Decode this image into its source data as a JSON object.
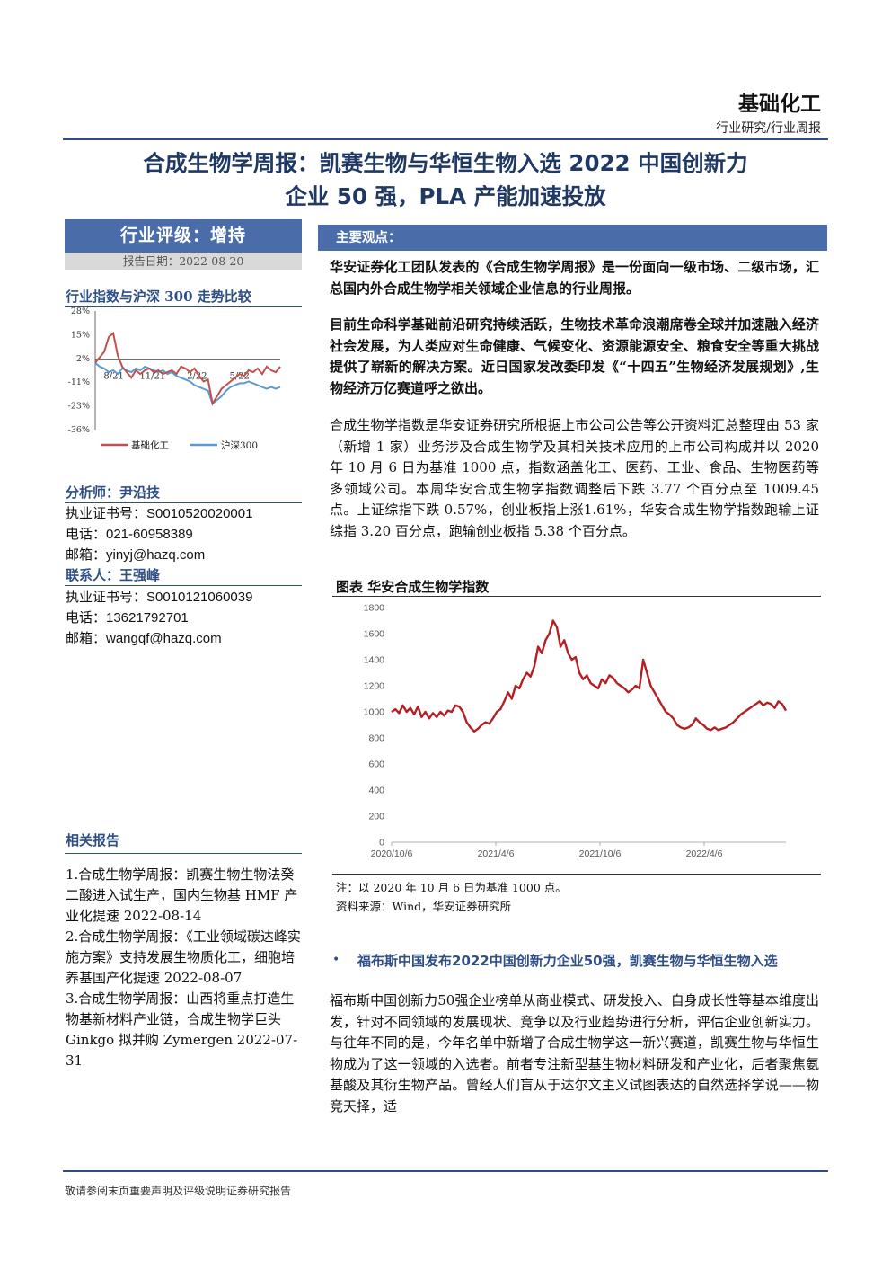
{
  "header": {
    "sector": "基础化工",
    "report_type": "行业研究/行业周报"
  },
  "title": {
    "line1": "合成生物学周报：凯赛生物与华恒生物入选 2022 中国创新力",
    "line2": "企业 50 强，PLA 产能加速投放"
  },
  "sidebar": {
    "rating": "行业评级：增持",
    "report_date": "报告日期：2022-08-20",
    "chart_title": "行业指数与沪深 300 走势比较",
    "analyst_heading": "分析师：尹沿技",
    "analyst_cert": "执业证书号：S0010520020001",
    "analyst_phone": "电话：021-60958389",
    "analyst_email": "邮箱：yinyj@hazq.com",
    "contact_heading": "联系人：王强峰",
    "contact_cert": "执业证书号：S0010121060039",
    "contact_phone": "电话：13621792701",
    "contact_email": "邮箱：wangqf@hazq.com",
    "related_heading": "相关报告",
    "related": [
      "1.合成生物学周报：凯赛生物生物法癸二酸进入试生产，国内生物基 HMF 产业化提速 2022-08-14",
      "2.合成生物学周报：《工业领域碳达峰实施方案》支持发展生物质化工，细胞培养基国产化提速 2022-08-07",
      "3.合成生物学周报：山西将重点打造生物基新材料产业链，合成生物学巨头 Ginkgo 拟并购 Zymergen 2022-07-31"
    ]
  },
  "main": {
    "section_label": "主要观点：",
    "para1": "华安证券化工团队发表的《合成生物学周报》是一份面向一级市场、二级市场，汇总国内外合成生物学相关领域企业信息的行业周报。",
    "para2": "目前生命科学基础前沿研究持续活跃，生物技术革命浪潮席卷全球并加速融入经济社会发展，为人类应对生命健康、气候变化、资源能源安全、粮食安全等重大挑战提供了崭新的解决方案。近日国家发改委印发《“十四五”生物经济发展规划》,生物经济万亿赛道呼之欲出。",
    "para3": "合成生物学指数是华安证券研究所根据上市公司公告等公开资料汇总整理由 53 家（新增 1 家）业务涉及合成生物学及其相关技术应用的上市公司构成并以 2020 年 10 月 6 日为基准 1000 点，指数涵盖化工、医药、工业、食品、生物医药等多领域公司。本周华安合成生物学指数调整后下跌 3.77 个百分点至 1009.45 点。上证综指下跌 0.57%，创业板指上涨1.61%，华安合成生物学指数跑输上证综指 3.20 百分点，跑输创业板指 5.38 个百分点。",
    "fig_title": "图表 华安合成生物学指数",
    "fig_note": "注：以 2020 年 10 月 6 日为基准 1000 点。",
    "fig_source": "资料来源：Wind，华安证券研究所",
    "bullet_head": "福布斯中国发布2022中国创新力企业50强，凯赛生物与华恒生物入选",
    "para4": "福布斯中国创新力50强企业榜单从商业模式、研发投入、自身成长性等基本维度出发，针对不同领域的发展现状、竞争以及行业趋势进行分析，评估企业创新实力。与往年不同的是，今年名单中新增了合成生物学这一新兴赛道，凯赛生物与华恒生物成为了这一领域的入选者。前者专注新型基生物材料研发和产业化，后者聚焦氨基酸及其衍生物产品。曾经人们盲从于达尔文主义试图表达的自然选择学说——物竞天择，适"
  },
  "footer": {
    "disclaimer": "敬请参阅末页重要声明及评级说明证券研究报告"
  },
  "chart_data": [
    {
      "type": "line",
      "title": "行业指数与沪深 300 走势比较",
      "x_tick_labels": [
        "8/21",
        "11/21",
        "2/22",
        "5/22"
      ],
      "y_tick_labels": [
        "28%",
        "15%",
        "2%",
        "-11%",
        "-23%",
        "-36%"
      ],
      "ylim": [
        -36,
        28
      ],
      "legend_position": "bottom",
      "colors": {
        "基础化工": "#c0504d",
        "沪深300": "#5b9bd5"
      },
      "series": [
        {
          "name": "基础化工",
          "values": [
            0,
            3,
            6,
            14,
            16,
            4,
            -2,
            -5,
            -8,
            -4,
            -6,
            -4,
            -3,
            -5,
            -4,
            -6,
            -5,
            -4,
            -6,
            -2,
            -3,
            -5,
            -3,
            -7,
            -10,
            -9,
            -22,
            -18,
            -14,
            -12,
            -10,
            -8,
            -6,
            -7,
            -4,
            -5,
            -3,
            -6,
            -2,
            -4,
            -5,
            -2
          ]
        },
        {
          "name": "沪深300",
          "values": [
            0,
            -2,
            -3,
            -5,
            -4,
            -6,
            -3,
            -4,
            -5,
            -3,
            -4,
            -2,
            -3,
            -4,
            -5,
            -4,
            -6,
            -5,
            -7,
            -8,
            -9,
            -10,
            -12,
            -13,
            -14,
            -15,
            -22,
            -20,
            -18,
            -15,
            -13,
            -12,
            -11,
            -11,
            -10,
            -11,
            -12,
            -13,
            -14,
            -13,
            -14,
            -13
          ]
        }
      ]
    },
    {
      "type": "line",
      "title": "图表 华安合成生物学指数",
      "x_tick_labels": [
        "2020/10/6",
        "2021/4/6",
        "2021/10/6",
        "2022/4/6"
      ],
      "y_tick_labels": [
        "0",
        "200",
        "400",
        "600",
        "800",
        "1000",
        "1200",
        "1400",
        "1600",
        "1800"
      ],
      "ylim": [
        0,
        1800
      ],
      "colors": {
        "line": "#b41f24"
      },
      "series": [
        {
          "name": "",
          "values": [
            1000,
            1020,
            990,
            1050,
            1000,
            1030,
            980,
            1040,
            960,
            1000,
            950,
            990,
            960,
            1000,
            970,
            1010,
            1000,
            1050,
            1040,
            1000,
            920,
            880,
            850,
            870,
            900,
            920,
            910,
            950,
            1000,
            1020,
            1080,
            1150,
            1100,
            1200,
            1180,
            1250,
            1300,
            1270,
            1350,
            1500,
            1450,
            1550,
            1600,
            1700,
            1650,
            1500,
            1550,
            1450,
            1400,
            1420,
            1300,
            1250,
            1280,
            1220,
            1200,
            1180,
            1250,
            1220,
            1280,
            1260,
            1220,
            1200,
            1180,
            1150,
            1170,
            1200,
            1180,
            1400,
            1300,
            1200,
            1150,
            1100,
            1050,
            1000,
            980,
            950,
            900,
            880,
            870,
            880,
            900,
            950,
            920,
            900,
            870,
            860,
            880,
            860,
            870,
            880,
            900,
            920,
            950,
            980,
            1000,
            1020,
            1040,
            1060,
            1080,
            1050,
            1070,
            1060,
            1030,
            1080,
            1060,
            1010
          ]
        }
      ]
    }
  ]
}
